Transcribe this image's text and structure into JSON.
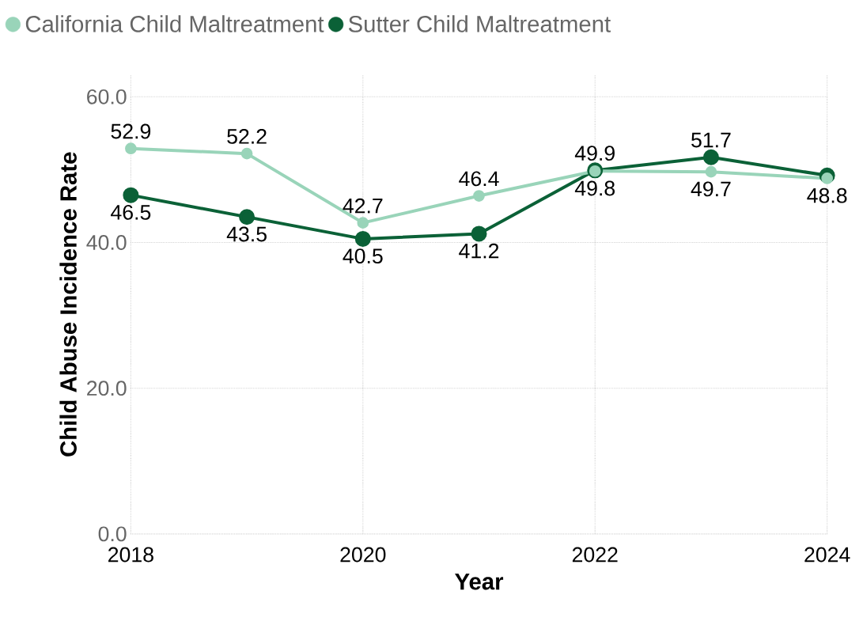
{
  "chart_data": {
    "type": "line",
    "xlabel": "Year",
    "ylabel": "Child Abuse Incidence Rate",
    "x": [
      2018,
      2019,
      2020,
      2021,
      2022,
      2023,
      2024
    ],
    "xlim": [
      2018,
      2024
    ],
    "xticks": [
      2018,
      2020,
      2022,
      2024
    ],
    "ylim": [
      0,
      63
    ],
    "yticks": [
      {
        "value": 0,
        "label": "0.0"
      },
      {
        "value": 20,
        "label": "20.0"
      },
      {
        "value": 40,
        "label": "40.0"
      },
      {
        "value": 60,
        "label": "60.0"
      }
    ],
    "grid": true,
    "legend": "top left",
    "marker": "circle",
    "line_style": "solid",
    "series": [
      {
        "name": "California Child Maltreatment",
        "color": "#99d4b9",
        "values": [
          52.9,
          52.2,
          42.7,
          46.4,
          49.8,
          49.7,
          48.8
        ],
        "value_labels": [
          "52.9",
          "52.2",
          "42.7",
          "46.4",
          "49.8",
          "49.7",
          "48.8"
        ]
      },
      {
        "name": "Sutter Child Maltreatment",
        "color": "#0b6137",
        "values": [
          46.5,
          43.5,
          40.5,
          41.2,
          49.9,
          51.7,
          49.2
        ],
        "value_labels": [
          "46.5",
          "43.5",
          "40.5",
          "41.2",
          "49.9",
          "51.7",
          null
        ]
      }
    ]
  }
}
